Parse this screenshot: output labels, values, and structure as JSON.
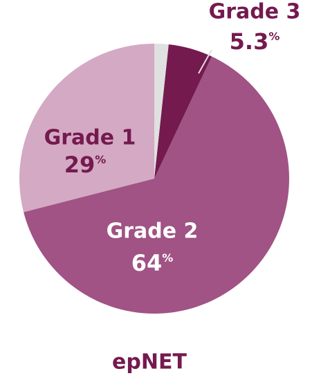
{
  "chart_data": {
    "type": "pie",
    "title": "epNET",
    "categories": [
      "Grade 1",
      "Grade 2",
      "Grade 3",
      null
    ],
    "values": [
      29,
      64,
      5.3,
      1.7
    ],
    "value_labels": [
      "29%",
      "64%",
      "5.3%",
      null
    ],
    "colors": [
      "#d4a9c4",
      "#a05384",
      "#741a4f",
      "#e0e0e0"
    ],
    "direction": "counterclockwise"
  }
}
